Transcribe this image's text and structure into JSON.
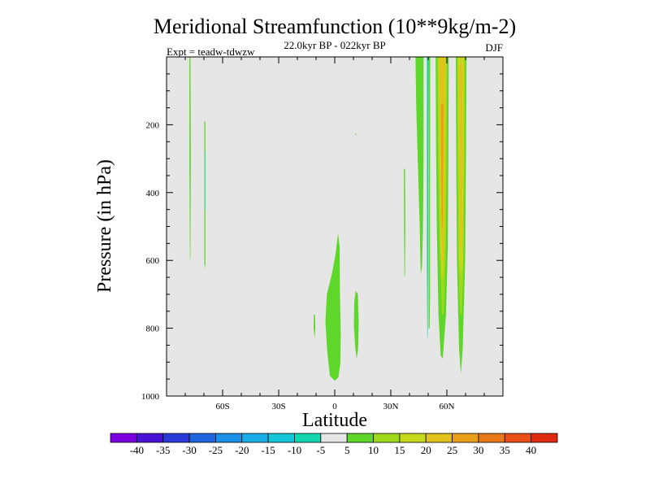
{
  "chart_data": {
    "type": "heatmap",
    "title": "Meridional Streamfunction (10**9kg/m-2)",
    "subtitle": "22.0kyr BP - 022kyr BP",
    "left_label": "Expt = teadw-tdwzw",
    "right_label": "DJF",
    "xlabel": "Latitude",
    "ylabel": "Pressure (in hPa)",
    "xlim": [
      -90,
      90
    ],
    "ylim": [
      0,
      1000
    ],
    "x_ticks": [
      {
        "value": -60,
        "label": "60S"
      },
      {
        "value": -30,
        "label": "30S"
      },
      {
        "value": 0,
        "label": "0"
      },
      {
        "value": 30,
        "label": "30N"
      },
      {
        "value": 60,
        "label": "60N"
      }
    ],
    "y_ticks": [
      {
        "value": 200,
        "label": "200"
      },
      {
        "value": 400,
        "label": "400"
      },
      {
        "value": 600,
        "label": "600"
      },
      {
        "value": 800,
        "label": "800"
      },
      {
        "value": 1000,
        "label": "1000"
      }
    ],
    "background_color": "#e6e6e6",
    "colorbar": {
      "labels": [
        "-40",
        "-35",
        "-30",
        "-25",
        "-20",
        "-15",
        "-10",
        "-5",
        "5",
        "10",
        "15",
        "20",
        "25",
        "30",
        "35",
        "40"
      ],
      "colors": [
        "#7b00e0",
        "#4a12d6",
        "#2a3ad6",
        "#1f66de",
        "#1b8ee6",
        "#19aee6",
        "#13c6d8",
        "#12d6b0",
        "#e6e6e6",
        "#5ed62a",
        "#9ed81a",
        "#c6d81a",
        "#e0c21a",
        "#e8a018",
        "#e87818",
        "#e85018",
        "#e02a12"
      ]
    },
    "contours": [
      {
        "name": "band-60s-a",
        "value_range": "5 to 10",
        "color": "#5ed62a",
        "points": [
          [
            -77.8,
            0
          ],
          [
            -77.2,
            0
          ],
          [
            -77.0,
            300
          ],
          [
            -77.2,
            590
          ],
          [
            -77.5,
            600
          ],
          [
            -77.8,
            300
          ]
        ]
      },
      {
        "name": "band-60s-b",
        "value_range": "5 to 10",
        "color": "#5ed62a",
        "points": [
          [
            -69.8,
            190
          ],
          [
            -69.2,
            190
          ],
          [
            -69.2,
            610
          ],
          [
            -69.5,
            625
          ],
          [
            -69.8,
            610
          ]
        ]
      },
      {
        "name": "band-60s-teal",
        "value_range": "-10 to -5",
        "color": "#12d6b0",
        "points": [
          [
            -69.6,
            280
          ],
          [
            -69.3,
            280
          ],
          [
            -69.3,
            450
          ],
          [
            -69.6,
            450
          ]
        ]
      },
      {
        "name": "blob-equator",
        "value_range": "5 to 10",
        "color": "#5ed62a",
        "points": [
          [
            1.8,
            520
          ],
          [
            2.6,
            560
          ],
          [
            2.8,
            700
          ],
          [
            3.2,
            820
          ],
          [
            3.0,
            900
          ],
          [
            2.0,
            945
          ],
          [
            0,
            955
          ],
          [
            -2.6,
            940
          ],
          [
            -4.0,
            870
          ],
          [
            -5.0,
            780
          ],
          [
            -4.2,
            700
          ],
          [
            -1.5,
            640
          ],
          [
            0.5,
            580
          ]
        ]
      },
      {
        "name": "blob-10n",
        "value_range": "5 to 10",
        "color": "#5ed62a",
        "points": [
          [
            11.2,
            690
          ],
          [
            12.4,
            700
          ],
          [
            12.8,
            780
          ],
          [
            12.5,
            860
          ],
          [
            11.8,
            890
          ],
          [
            11.0,
            860
          ],
          [
            10.2,
            790
          ],
          [
            10.5,
            720
          ]
        ]
      },
      {
        "name": "blob-10s",
        "value_range": "5 to 10",
        "color": "#5ed62a",
        "points": [
          [
            -11.2,
            760
          ],
          [
            -10.6,
            760
          ],
          [
            -10.4,
            800
          ],
          [
            -10.8,
            830
          ],
          [
            -11.3,
            800
          ]
        ]
      },
      {
        "name": "speck-10n",
        "value_range": "5 to 10",
        "color": "#5ed62a",
        "points": [
          [
            11.0,
            225
          ],
          [
            11.4,
            225
          ],
          [
            11.4,
            230
          ],
          [
            11.0,
            230
          ]
        ]
      },
      {
        "name": "band-37n",
        "value_range": "5 to 10",
        "color": "#5ed62a",
        "points": [
          [
            37.0,
            330
          ],
          [
            37.6,
            330
          ],
          [
            37.8,
            500
          ],
          [
            37.6,
            640
          ],
          [
            37.3,
            650
          ],
          [
            37.1,
            500
          ]
        ]
      },
      {
        "name": "band-45n",
        "value_range": "5 to 10",
        "color": "#5ed62a",
        "points": [
          [
            43.2,
            0
          ],
          [
            47.5,
            0
          ],
          [
            47.5,
            300
          ],
          [
            47.2,
            500
          ],
          [
            46.7,
            620
          ],
          [
            46.0,
            640
          ],
          [
            45.5,
            500
          ],
          [
            44.4,
            300
          ],
          [
            43.6,
            150
          ]
        ]
      },
      {
        "name": "band-50n-teal",
        "value_range": "-10 to -5",
        "color": "#12d6b0",
        "points": [
          [
            49.3,
            0
          ],
          [
            50.2,
            0
          ],
          [
            50.0,
            300
          ],
          [
            50.0,
            600
          ],
          [
            49.8,
            820
          ],
          [
            49.5,
            830
          ],
          [
            49.3,
            600
          ]
        ]
      },
      {
        "name": "band-50n-green",
        "value_range": "5 to 10",
        "color": "#5ed62a",
        "points": [
          [
            50.2,
            0
          ],
          [
            51.1,
            0
          ],
          [
            51.0,
            400
          ],
          [
            51.0,
            700
          ],
          [
            50.8,
            800
          ],
          [
            50.2,
            800
          ]
        ]
      },
      {
        "name": "band-57n-outer",
        "value_range": "5 to 10",
        "color": "#5ed62a",
        "points": [
          [
            54.0,
            0
          ],
          [
            61.0,
            0
          ],
          [
            60.8,
            300
          ],
          [
            60.5,
            560
          ],
          [
            59.5,
            760
          ],
          [
            57.8,
            890
          ],
          [
            56.7,
            880
          ],
          [
            55.5,
            760
          ],
          [
            54.6,
            500
          ],
          [
            54.2,
            250
          ]
        ]
      },
      {
        "name": "band-57n-15",
        "value_range": "10 to 15",
        "color": "#9ed81a",
        "points": [
          [
            54.8,
            0
          ],
          [
            60.2,
            0
          ],
          [
            60.0,
            300
          ],
          [
            59.5,
            560
          ],
          [
            58.3,
            760
          ],
          [
            57.4,
            760
          ],
          [
            56.0,
            560
          ],
          [
            55.2,
            300
          ]
        ]
      },
      {
        "name": "band-57n-20",
        "value_range": "15 to 20",
        "color": "#c6d81a",
        "points": [
          [
            55.5,
            0
          ],
          [
            59.5,
            0
          ],
          [
            59.2,
            300
          ],
          [
            58.8,
            560
          ],
          [
            58.0,
            650
          ],
          [
            57.2,
            650
          ],
          [
            56.5,
            560
          ],
          [
            55.9,
            300
          ]
        ]
      },
      {
        "name": "band-57n-25",
        "value_range": "20 to 25",
        "color": "#e0c21a",
        "points": [
          [
            56.0,
            0
          ],
          [
            59.0,
            0
          ],
          [
            58.6,
            300
          ],
          [
            58.2,
            600
          ],
          [
            57.4,
            600
          ],
          [
            56.6,
            300
          ]
        ]
      },
      {
        "name": "band-57n-30",
        "value_range": "25 to 30",
        "color": "#e8a018",
        "points": [
          [
            56.8,
            140
          ],
          [
            58.2,
            140
          ],
          [
            58.0,
            300
          ],
          [
            57.8,
            500
          ],
          [
            57.2,
            500
          ],
          [
            57.0,
            300
          ]
        ]
      },
      {
        "name": "band-67n-outer",
        "value_range": "5 to 10",
        "color": "#5ed62a",
        "points": [
          [
            64.8,
            0
          ],
          [
            70.5,
            0
          ],
          [
            70.2,
            300
          ],
          [
            69.8,
            600
          ],
          [
            68.5,
            860
          ],
          [
            67.5,
            935
          ],
          [
            66.5,
            860
          ],
          [
            65.4,
            600
          ],
          [
            65.0,
            300
          ]
        ]
      },
      {
        "name": "band-67n-15",
        "value_range": "10 to 15",
        "color": "#9ed81a",
        "points": [
          [
            65.5,
            0
          ],
          [
            69.8,
            0
          ],
          [
            69.5,
            300
          ],
          [
            69.0,
            600
          ],
          [
            68.0,
            760
          ],
          [
            67.0,
            760
          ],
          [
            66.0,
            600
          ],
          [
            65.7,
            300
          ]
        ]
      },
      {
        "name": "band-67n-20",
        "value_range": "15 to 20",
        "color": "#c6d81a",
        "points": [
          [
            66.0,
            0
          ],
          [
            69.2,
            0
          ],
          [
            69.0,
            300
          ],
          [
            68.5,
            600
          ],
          [
            67.5,
            650
          ],
          [
            66.6,
            600
          ],
          [
            66.3,
            300
          ]
        ]
      },
      {
        "name": "band-67n-25",
        "value_range": "20 to 25",
        "color": "#e0c21a",
        "points": [
          [
            66.6,
            20
          ],
          [
            68.6,
            20
          ],
          [
            68.3,
            300
          ],
          [
            68.0,
            560
          ],
          [
            67.1,
            560
          ],
          [
            66.9,
            300
          ]
        ]
      }
    ]
  }
}
